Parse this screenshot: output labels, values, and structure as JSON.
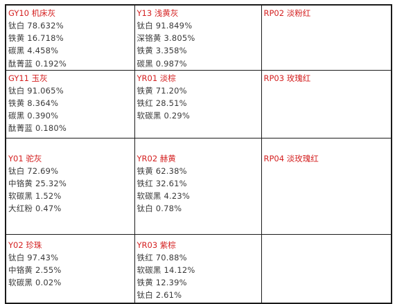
{
  "table": {
    "rows": [
      {
        "cells": [
          {
            "code_name": "GY10 机床灰",
            "ingredients": [
              "钛白 78.632%",
              "铁黄 16.718%",
              "碳黑 4.458%",
              "酞菁蓝 0.192%"
            ]
          },
          {
            "code_name": "Y13 浅黄灰",
            "ingredients": [
              "钛白 91.849%",
              "深铬黄 3.805%",
              "铁黄 3.358%",
              "碳黑 0.987%"
            ]
          },
          {
            "code_name": "RP02 淡粉红",
            "ingredients": []
          }
        ]
      },
      {
        "cells": [
          {
            "code_name": "GY11 玉灰",
            "ingredients": [
              "钛白 91.065%",
              "铁黄 8.364%",
              "碳黑 0.390%",
              "酞菁蓝 0.180%"
            ]
          },
          {
            "code_name": "YR01 淡棕",
            "ingredients": [
              "铁黄 71.20%",
              "铁红 28.51%",
              "软碳黑 0.29%"
            ]
          },
          {
            "code_name": "RP03 玫瑰红",
            "ingredients": []
          }
        ]
      },
      {
        "cells": [
          {
            "code_name": "Y01 驼灰",
            "ingredients": [
              "钛白 72.69%",
              "中铬黄 25.32%",
              "软碳黑 1.52%",
              "大红粉 0.47%"
            ]
          },
          {
            "code_name": "YR02 赫黄",
            "ingredients": [
              "铁黄 62.38%",
              "铁红 32.61%",
              "软碳黑 4.23%",
              "钛白 0.78%"
            ]
          },
          {
            "code_name": "RP04 淡玫瑰红",
            "ingredients": []
          }
        ]
      },
      {
        "cells": [
          {
            "code_name": "Y02 珍珠",
            "ingredients": [
              "钛白 97.43%",
              "中铬黄 2.55%",
              "软碳黑 0.02%"
            ]
          },
          {
            "code_name": "YR03 紫棕",
            "ingredients": [
              "铁红 70.88%",
              "软碳黑 14.12%",
              "铁黄 12.39%",
              "钛白 2.61%"
            ]
          },
          {
            "code_name": "",
            "ingredients": []
          }
        ]
      }
    ]
  },
  "colors": {
    "title_red": "#d42020",
    "body_text": "#3a3a3a",
    "border": "#1a1a1a"
  }
}
